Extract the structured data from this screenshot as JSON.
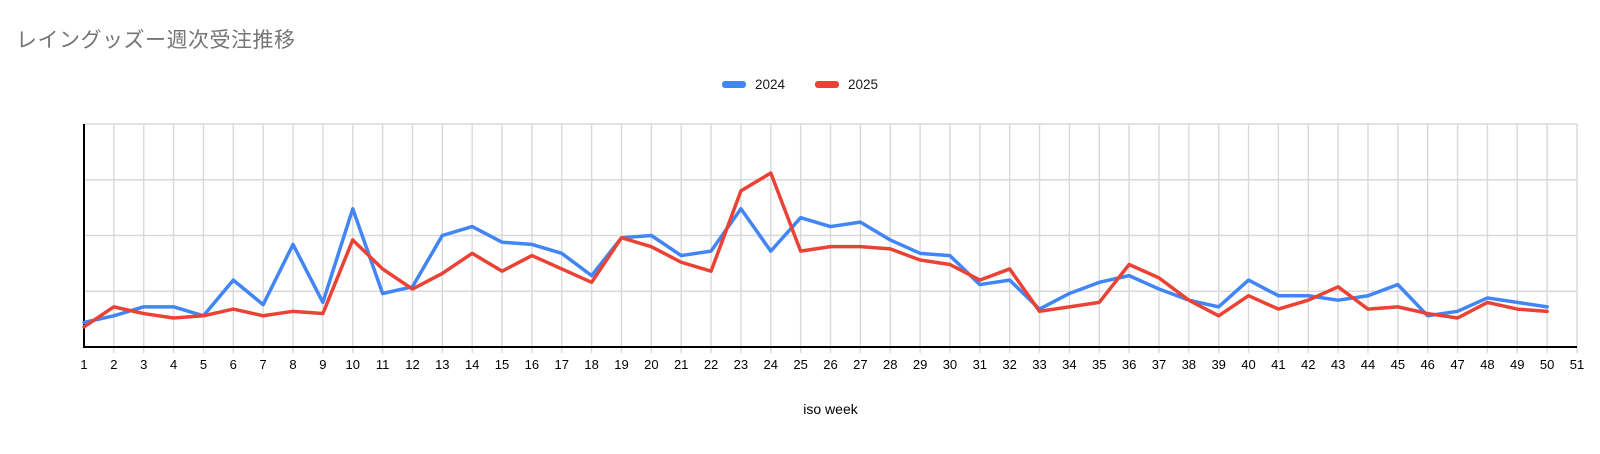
{
  "chart_data": {
    "type": "line",
    "title": "レイングッズー週次受注推移",
    "xlabel": "iso week",
    "ylabel": "",
    "x_tick_labels": [
      "1",
      "2",
      "3",
      "4",
      "5",
      "6",
      "7",
      "8",
      "9",
      "10",
      "11",
      "12",
      "13",
      "14",
      "15",
      "16",
      "17",
      "18",
      "19",
      "20",
      "21",
      "22",
      "23",
      "24",
      "25",
      "26",
      "27",
      "28",
      "29",
      "30",
      "31",
      "32",
      "33",
      "34",
      "35",
      "36",
      "37",
      "38",
      "39",
      "40",
      "41",
      "42",
      "43",
      "44",
      "45",
      "46",
      "47",
      "48",
      "49",
      "50",
      "51"
    ],
    "weeks": [
      1,
      2,
      3,
      4,
      5,
      6,
      7,
      8,
      9,
      10,
      11,
      12,
      13,
      14,
      15,
      16,
      17,
      18,
      19,
      20,
      21,
      22,
      23,
      24,
      25,
      26,
      27,
      28,
      29,
      30,
      31,
      32,
      33,
      34,
      35,
      36,
      37,
      38,
      39,
      40,
      41,
      42,
      43,
      44,
      45,
      46,
      47,
      48,
      49,
      50
    ],
    "series": [
      {
        "name": "2024",
        "color": "#4285f4",
        "values": [
          11,
          14,
          18,
          18,
          14,
          30,
          19,
          46,
          20,
          62,
          24,
          27,
          50,
          54,
          47,
          46,
          42,
          32,
          49,
          50,
          41,
          43,
          62,
          43,
          58,
          54,
          56,
          48,
          42,
          41,
          28,
          30,
          17,
          24,
          29,
          32,
          26,
          21,
          18,
          30,
          23,
          23,
          21,
          23,
          28,
          14,
          16,
          22,
          20,
          18
        ]
      },
      {
        "name": "2025",
        "color": "#ea4335",
        "values": [
          9,
          18,
          15,
          13,
          14,
          17,
          14,
          16,
          15,
          48,
          35,
          26,
          33,
          42,
          34,
          41,
          35,
          29,
          49,
          45,
          38,
          34,
          70,
          78,
          43,
          45,
          45,
          44,
          39,
          37,
          30,
          35,
          16,
          18,
          20,
          37,
          31,
          21,
          14,
          23,
          17,
          21,
          27,
          17,
          18,
          15,
          13,
          20,
          17,
          16
        ]
      }
    ],
    "ylim": [
      0,
      100
    ],
    "y_axis_labels_visible": false,
    "y_gridline_values": [
      25,
      50,
      75,
      100
    ],
    "grid": true,
    "legend_position": "top-center",
    "gridline_color": "#d9d9d9",
    "axis_color": "#000000",
    "title_color": "#757575"
  }
}
